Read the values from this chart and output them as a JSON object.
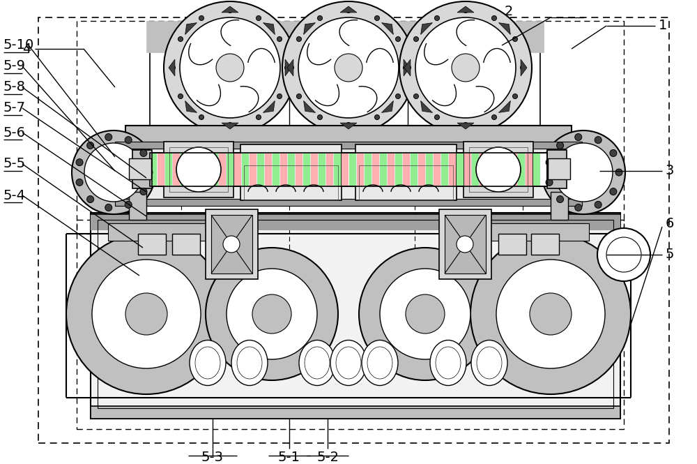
{
  "bg_color": "#ffffff",
  "line_color": "#000000",
  "gray_fill": "#d8d8d8",
  "light_gray": "#c0c0c0",
  "mid_gray": "#a0a0a0",
  "dark_gray": "#404040",
  "fig_width": 10.0,
  "fig_height": 6.65,
  "dpi": 100
}
